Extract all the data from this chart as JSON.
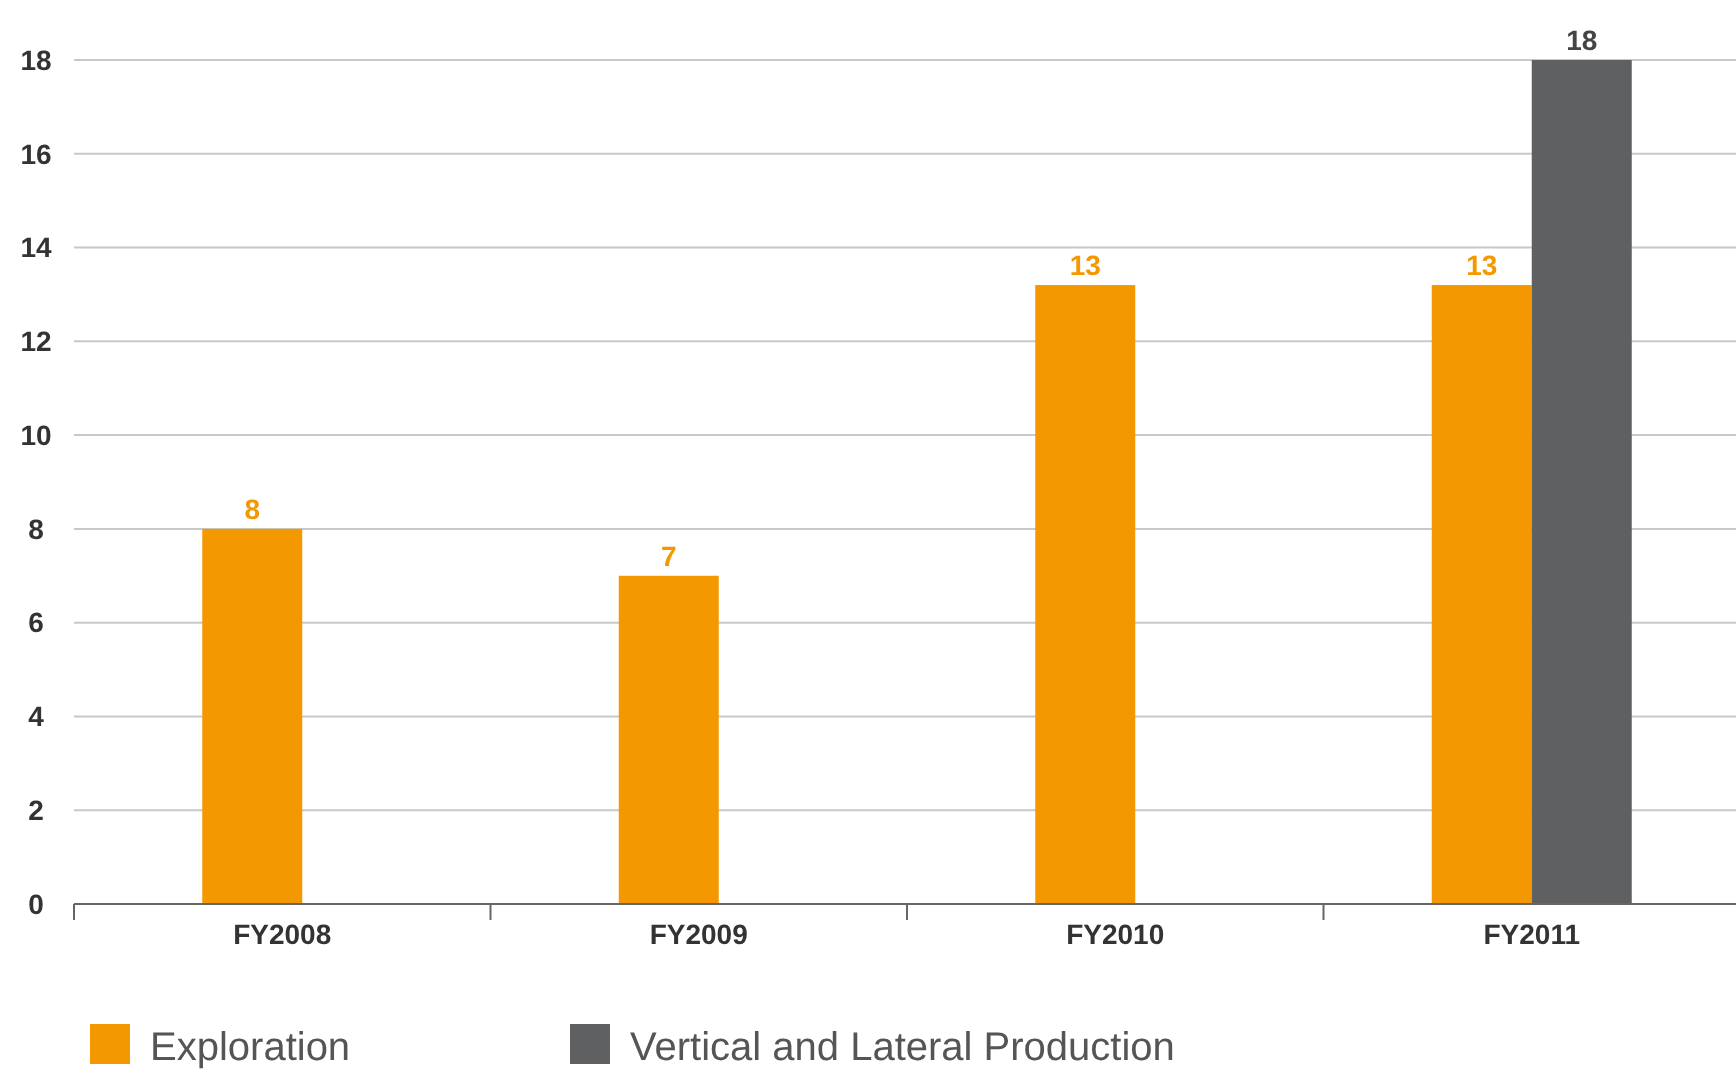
{
  "chart_data": {
    "type": "bar",
    "categories": [
      "FY2008",
      "FY2009",
      "FY2010",
      "FY2011"
    ],
    "series": [
      {
        "name": "Exploration",
        "color": "#f39800",
        "values": [
          8,
          7,
          13.2,
          13.2
        ],
        "value_labels": [
          "8",
          "7",
          "13",
          "13"
        ]
      },
      {
        "name": "Vertical and Lateral Production",
        "color": "#5f6062",
        "values": [
          null,
          null,
          null,
          18
        ],
        "value_labels": [
          null,
          null,
          null,
          "18"
        ]
      }
    ],
    "ylim": [
      0,
      18
    ],
    "yticks": [
      0,
      2,
      4,
      6,
      8,
      10,
      12,
      14,
      16,
      18
    ],
    "grid": "y",
    "legend": "bottom"
  }
}
